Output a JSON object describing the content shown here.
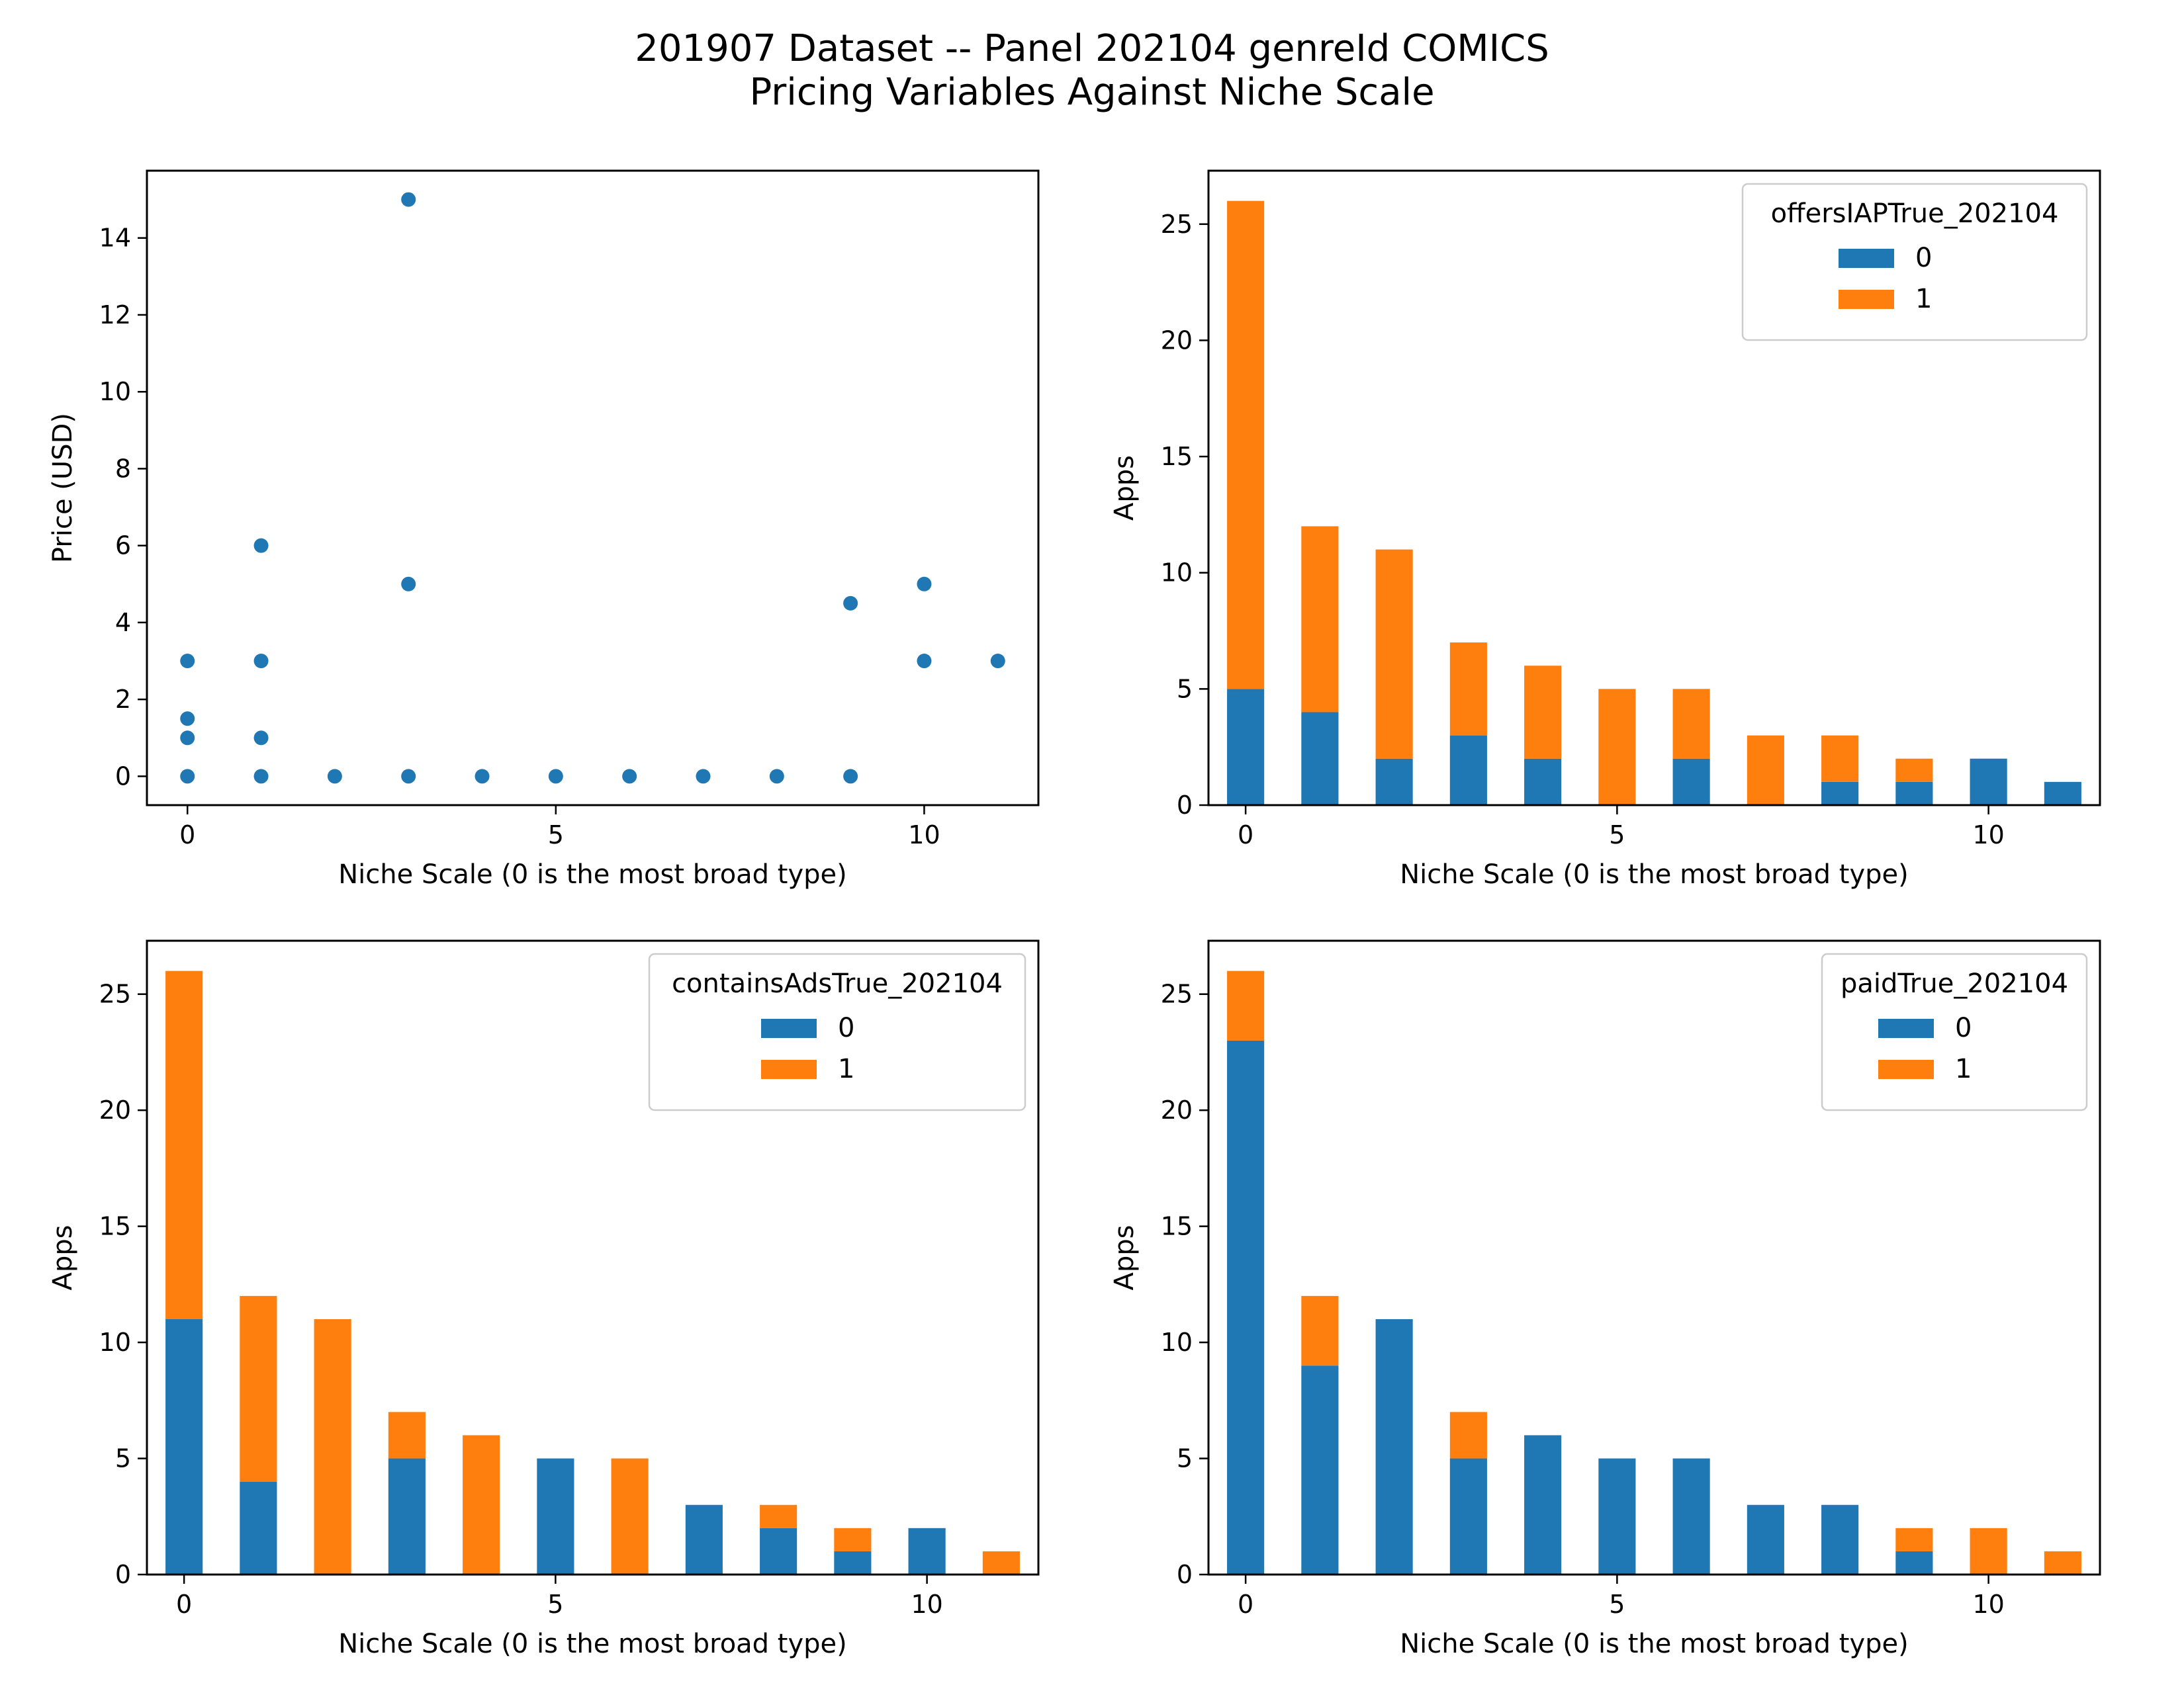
{
  "figure": {
    "title_line1": "201907 Dataset -- Panel 202104 genreId COMICS",
    "title_line2": "Pricing Variables Against Niche Scale"
  },
  "colors": {
    "series_0": "#1f77b4",
    "series_1": "#ff7f0e"
  },
  "chart_data": [
    {
      "id": "price-scatter",
      "type": "scatter",
      "xlabel": "Niche Scale (0 is the most broad type)",
      "ylabel": "Price (USD)",
      "xlim": [
        -0.55,
        11.55
      ],
      "ylim": [
        -0.75,
        15.75
      ],
      "xticks": [
        0,
        5,
        10
      ],
      "yticks": [
        0,
        2,
        4,
        6,
        8,
        10,
        12,
        14
      ],
      "points": [
        {
          "x": 0,
          "y": 3
        },
        {
          "x": 0,
          "y": 1.5
        },
        {
          "x": 0,
          "y": 1
        },
        {
          "x": 0,
          "y": 0
        },
        {
          "x": 1,
          "y": 6
        },
        {
          "x": 1,
          "y": 3
        },
        {
          "x": 1,
          "y": 1
        },
        {
          "x": 1,
          "y": 0
        },
        {
          "x": 2,
          "y": 0
        },
        {
          "x": 3,
          "y": 15
        },
        {
          "x": 3,
          "y": 5
        },
        {
          "x": 3,
          "y": 0
        },
        {
          "x": 4,
          "y": 0
        },
        {
          "x": 5,
          "y": 0
        },
        {
          "x": 6,
          "y": 0
        },
        {
          "x": 7,
          "y": 0
        },
        {
          "x": 8,
          "y": 0
        },
        {
          "x": 9,
          "y": 4.5
        },
        {
          "x": 9,
          "y": 0
        },
        {
          "x": 10,
          "y": 5
        },
        {
          "x": 10,
          "y": 3
        },
        {
          "x": 11,
          "y": 3
        }
      ]
    },
    {
      "id": "iap-bars",
      "type": "bar",
      "stacked": true,
      "xlabel": "Niche Scale (0 is the most broad type)",
      "ylabel": "Apps",
      "categories": [
        0,
        1,
        2,
        3,
        4,
        5,
        6,
        7,
        8,
        9,
        10,
        11
      ],
      "xticks": [
        0,
        5,
        10
      ],
      "yticks": [
        0,
        5,
        10,
        15,
        20,
        25
      ],
      "ylim": [
        0,
        27.3
      ],
      "legend_title": "offersIAPTrue_202104",
      "legend_position": "upper right",
      "series": [
        {
          "name": "0",
          "values": [
            5,
            4,
            2,
            3,
            2,
            0,
            2,
            0,
            1,
            1,
            2,
            1
          ]
        },
        {
          "name": "1",
          "values": [
            21,
            8,
            9,
            4,
            4,
            5,
            3,
            3,
            2,
            1,
            0,
            0
          ]
        }
      ]
    },
    {
      "id": "ads-bars",
      "type": "bar",
      "stacked": true,
      "xlabel": "Niche Scale (0 is the most broad type)",
      "ylabel": "Apps",
      "categories": [
        0,
        1,
        2,
        3,
        4,
        5,
        6,
        7,
        8,
        9,
        10,
        11
      ],
      "xticks": [
        0,
        5,
        10
      ],
      "yticks": [
        0,
        5,
        10,
        15,
        20,
        25
      ],
      "ylim": [
        0,
        27.3
      ],
      "legend_title": "containsAdsTrue_202104",
      "legend_position": "upper right",
      "series": [
        {
          "name": "0",
          "values": [
            11,
            4,
            0,
            5,
            0,
            5,
            0,
            3,
            2,
            1,
            2,
            0
          ]
        },
        {
          "name": "1",
          "values": [
            15,
            8,
            11,
            2,
            6,
            0,
            5,
            0,
            1,
            1,
            0,
            1
          ]
        }
      ]
    },
    {
      "id": "paid-bars",
      "type": "bar",
      "stacked": true,
      "xlabel": "Niche Scale (0 is the most broad type)",
      "ylabel": "Apps",
      "categories": [
        0,
        1,
        2,
        3,
        4,
        5,
        6,
        7,
        8,
        9,
        10,
        11
      ],
      "xticks": [
        0,
        5,
        10
      ],
      "yticks": [
        0,
        5,
        10,
        15,
        20,
        25
      ],
      "ylim": [
        0,
        27.3
      ],
      "legend_title": "paidTrue_202104",
      "legend_position": "upper right",
      "series": [
        {
          "name": "0",
          "values": [
            23,
            9,
            11,
            5,
            6,
            5,
            5,
            3,
            3,
            1,
            0,
            0
          ]
        },
        {
          "name": "1",
          "values": [
            3,
            3,
            0,
            2,
            0,
            0,
            0,
            0,
            0,
            1,
            2,
            1
          ]
        }
      ]
    }
  ]
}
